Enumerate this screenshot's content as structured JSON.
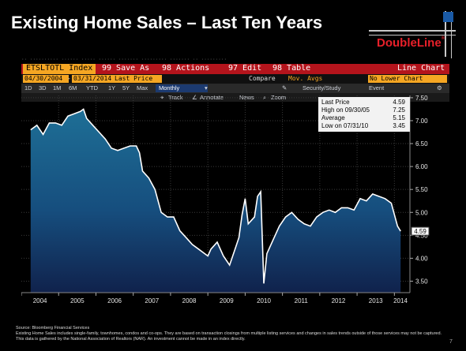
{
  "slide": {
    "title": "Existing Home Sales – Last Ten Years",
    "logo": "DoubleLine",
    "logo_mark": "®",
    "page_number": "7"
  },
  "terminal": {
    "ticker": "ETSLTOTL Index",
    "actions": [
      "99 Save As",
      "98 Actions",
      "97 Edit",
      "98 Table"
    ],
    "chart_label": "Line Chart",
    "start_date": "04/30/2004",
    "end_date": "03/31/2014",
    "price_field": "Last Price",
    "compare": "Compare",
    "mov_avgs": "Mov. Avgs",
    "lower_chart": "No Lower Chart",
    "periods": [
      "1D",
      "3D",
      "1M",
      "6M",
      "YTD",
      "1Y",
      "5Y",
      "Max"
    ],
    "frequency": "Monthly",
    "security": "Security/Study",
    "event": "Event",
    "tools": [
      "Track",
      "Annotate",
      "News",
      "Zoom"
    ]
  },
  "legend": [
    {
      "label": "Last Price",
      "value": "4.59"
    },
    {
      "label": "High on 09/30/05",
      "value": "7.25"
    },
    {
      "label": "Average",
      "value": "5.15"
    },
    {
      "label": "Low on 07/31/10",
      "value": "3.45"
    }
  ],
  "chart_data": {
    "type": "area",
    "title": "",
    "xlabel": "",
    "ylabel": "",
    "ylim": [
      3.25,
      7.55
    ],
    "xlim": [
      "2004-01",
      "2014-06"
    ],
    "y_ticks": [
      "7.50",
      "7.00",
      "6.50",
      "6.00",
      "5.50",
      "5.00",
      "4.50",
      "4.00",
      "3.50"
    ],
    "x_ticks": [
      "2004",
      "2005",
      "2006",
      "2007",
      "2008",
      "2009",
      "2010",
      "2011",
      "2012",
      "2013",
      "2014"
    ],
    "last_value_label": "4.59",
    "grid": true,
    "series": [
      {
        "x": [
          "2004-04",
          "2004-06",
          "2004-08",
          "2004-10",
          "2004-12",
          "2005-02",
          "2005-04",
          "2005-06",
          "2005-08",
          "2005-09",
          "2005-10",
          "2005-12",
          "2006-02",
          "2006-04",
          "2006-06",
          "2006-08",
          "2006-10",
          "2006-12",
          "2007-02",
          "2007-03",
          "2007-04",
          "2007-06",
          "2007-08",
          "2007-10",
          "2007-12",
          "2008-02",
          "2008-04",
          "2008-06",
          "2008-08",
          "2008-10",
          "2008-12",
          "2009-01",
          "2009-02",
          "2009-04",
          "2009-06",
          "2009-08",
          "2009-10",
          "2009-11",
          "2009-12",
          "2010-01",
          "2010-02",
          "2010-04",
          "2010-05",
          "2010-06",
          "2010-07",
          "2010-08",
          "2010-10",
          "2010-12",
          "2011-02",
          "2011-04",
          "2011-06",
          "2011-08",
          "2011-10",
          "2011-12",
          "2012-02",
          "2012-04",
          "2012-06",
          "2012-08",
          "2012-10",
          "2012-12",
          "2013-02",
          "2013-04",
          "2013-06",
          "2013-08",
          "2013-10",
          "2013-12",
          "2014-02",
          "2014-03"
        ],
        "values": [
          6.8,
          6.9,
          6.7,
          6.95,
          6.95,
          6.9,
          7.1,
          7.15,
          7.2,
          7.25,
          7.05,
          6.9,
          6.75,
          6.6,
          6.4,
          6.35,
          6.4,
          6.45,
          6.45,
          6.3,
          5.9,
          5.75,
          5.5,
          5.0,
          4.9,
          4.9,
          4.6,
          4.45,
          4.3,
          4.2,
          4.1,
          4.05,
          4.2,
          4.35,
          4.05,
          3.85,
          4.25,
          4.45,
          4.95,
          5.3,
          4.75,
          4.9,
          5.35,
          5.45,
          3.45,
          4.1,
          4.4,
          4.7,
          4.9,
          5.0,
          4.85,
          4.75,
          4.7,
          4.9,
          5.0,
          5.05,
          5.0,
          5.1,
          5.1,
          5.05,
          5.3,
          5.25,
          5.4,
          5.35,
          5.3,
          5.2,
          4.7,
          4.59
        ]
      }
    ]
  },
  "footer": {
    "source": "Source: Bloomberg  Financial Services",
    "note": "Existing Home Sales includes single-family, townhomes, condos and co-ops. They are based on transaction closings from multiple listing services and changes in sales trends outside of those services may not be captured. This data is gathered by the National Association of Realtors (NAR). An investment cannot be made in an index directly."
  }
}
